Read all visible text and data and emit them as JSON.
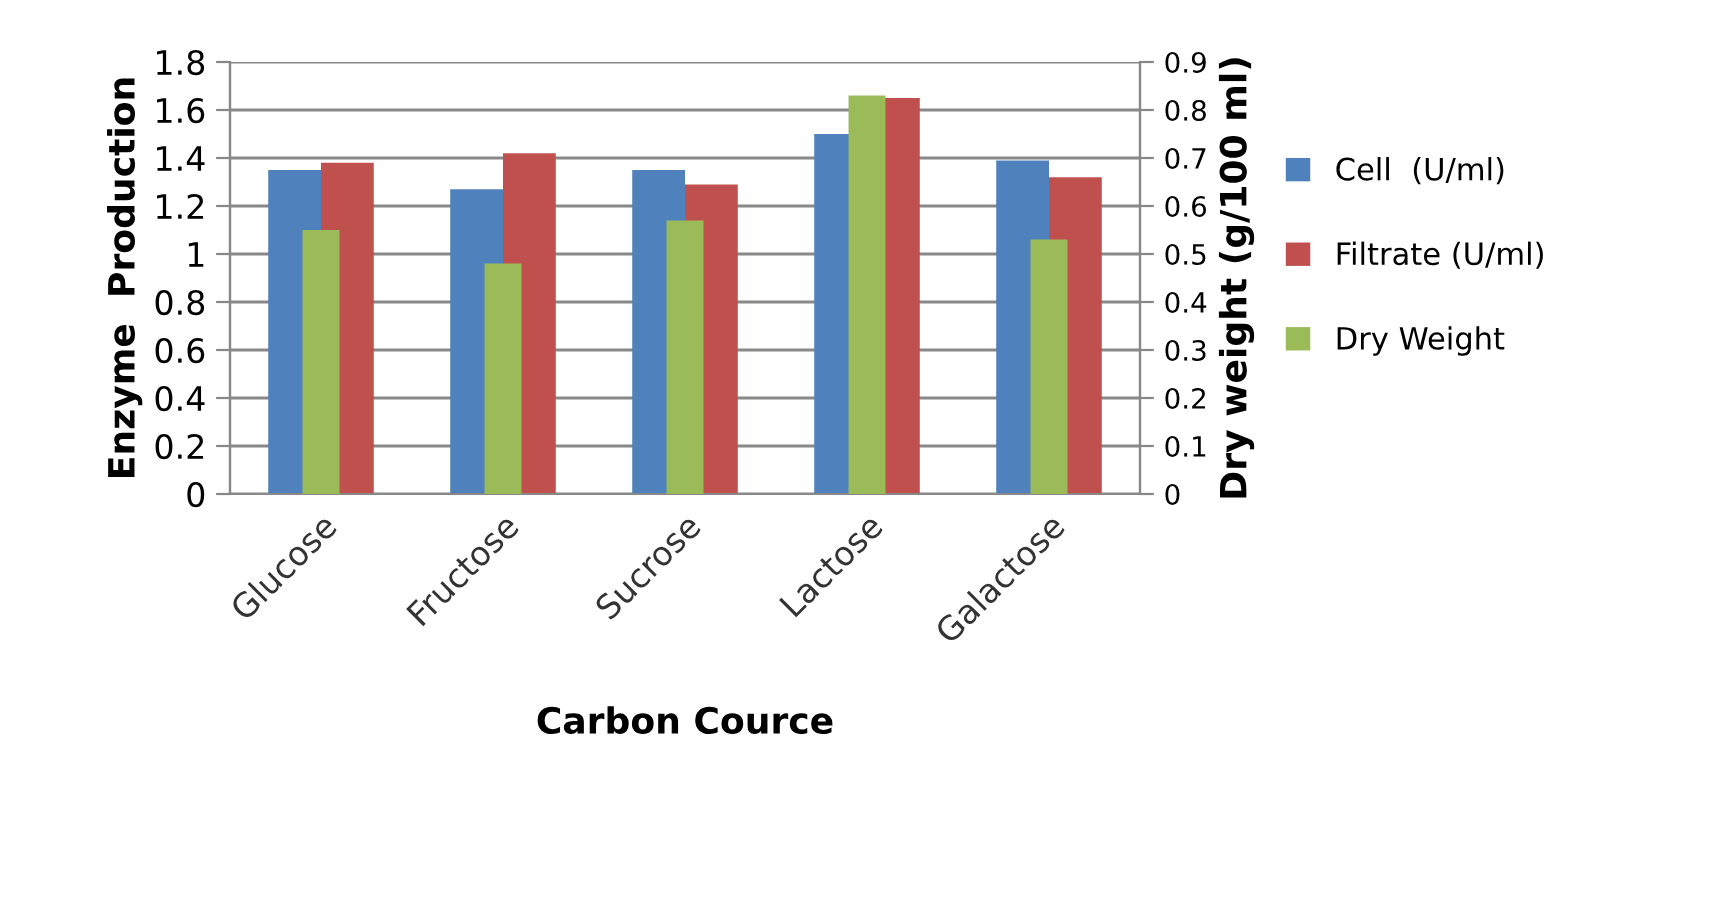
{
  "chart_data": {
    "type": "bar",
    "xlabel": "Carbon Cource",
    "ylabel": "Enzyme  Production",
    "y2label": "Dry weight (g/100 ml)",
    "categories": [
      "Glucose",
      "Fructose",
      "Sucrose",
      "Lactose",
      "Galactose"
    ],
    "series": [
      {
        "name": "Cell  (U/ml)",
        "color": "#4f81bd",
        "values": [
          1.35,
          1.27,
          1.35,
          1.5,
          1.39
        ]
      },
      {
        "name": "Filtrate (U/ml)",
        "color": "#c0504d",
        "values": [
          1.38,
          1.42,
          1.29,
          1.65,
          1.32
        ]
      },
      {
        "name": "Dry Weight",
        "color": "#9bbb59",
        "values": [
          0.55,
          0.48,
          0.57,
          0.83,
          0.53
        ],
        "axis": "y2"
      }
    ],
    "ylim": [
      0,
      1.8
    ],
    "yticks": [
      0,
      0.2,
      0.4,
      0.6,
      0.8,
      1,
      1.2,
      1.4,
      1.6,
      1.8
    ],
    "y2lim": [
      0,
      0.9
    ],
    "y2ticks": [
      0,
      0.1,
      0.2,
      0.3,
      0.4,
      0.5,
      0.6,
      0.7,
      0.8,
      0.9
    ],
    "grid": "y",
    "legend": "right"
  }
}
